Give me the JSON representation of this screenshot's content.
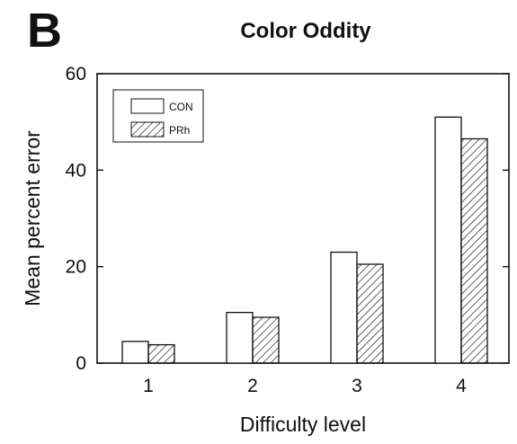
{
  "panel_label": "B",
  "chart_data": {
    "type": "bar",
    "title": "Color Oddity",
    "xlabel": "Difficulty level",
    "ylabel": "Mean percent error",
    "categories": [
      "1",
      "2",
      "3",
      "4"
    ],
    "ylim": [
      0,
      60
    ],
    "yticks": [
      0,
      20,
      40,
      60
    ],
    "grid": false,
    "legend_position": "top-left",
    "series": [
      {
        "name": "CON",
        "values": [
          4.5,
          10.5,
          23,
          51
        ],
        "fill": "open"
      },
      {
        "name": "PRh",
        "values": [
          3.8,
          9.5,
          20.5,
          46.5
        ],
        "fill": "hatched"
      }
    ]
  }
}
